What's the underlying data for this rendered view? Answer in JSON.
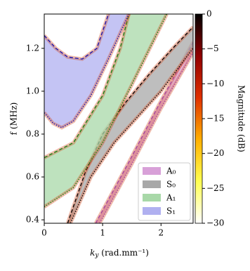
{
  "chart_data": {
    "type": "band",
    "xlabel": [
      "k",
      "y",
      " (rad.mm⁻¹)"
    ],
    "ylabel": "f (MHz)",
    "xlim": [
      0,
      2.55
    ],
    "ylim": [
      0.384,
      1.36
    ],
    "xticks": [
      0,
      1,
      2
    ],
    "yticks": [
      {
        "value": 0.4,
        "label": "0.4"
      },
      {
        "value": 0.6,
        "label": "0.6"
      },
      {
        "value": 0.8,
        "label": "0.8"
      },
      {
        "value": 1,
        "label": "1.0"
      },
      {
        "value": 1.2,
        "label": "1.2"
      }
    ],
    "legend": "lower right",
    "series": [
      {
        "name": "A₀",
        "color": "#d8a0d8",
        "edge": "#a040a0",
        "lower": {
          "x": [
            0.95,
            1.5,
            2.0,
            2.55
          ],
          "y": [
            0.384,
            0.66,
            0.92,
            1.18
          ]
        },
        "upper": {
          "x": [
            0.88,
            1.45,
            1.95,
            2.55
          ],
          "y": [
            0.384,
            0.67,
            0.93,
            1.23
          ]
        }
      },
      {
        "name": "S₀",
        "color": "#a8a8a8",
        "edge": "#000000",
        "lower": {
          "x": [
            0.45,
            0.8,
            1.2,
            1.6,
            2.0,
            2.55
          ],
          "y": [
            0.384,
            0.6,
            0.76,
            0.88,
            1.0,
            1.2
          ]
        },
        "upper": {
          "x": [
            0.4,
            0.7,
            1.0,
            1.4,
            1.8,
            2.2,
            2.55
          ],
          "y": [
            0.384,
            0.62,
            0.8,
            0.95,
            1.08,
            1.2,
            1.3
          ]
        }
      },
      {
        "name": "A₁",
        "color": "#a8d8a8",
        "edge": "#108010",
        "lower": {
          "x": [
            0,
            0.5,
            1.0,
            1.5,
            2.1
          ],
          "y": [
            0.46,
            0.55,
            0.76,
            1.03,
            1.36
          ]
        },
        "upper": {
          "x": [
            0,
            0.5,
            1.0,
            1.3,
            1.45
          ],
          "y": [
            0.69,
            0.76,
            0.98,
            1.2,
            1.36
          ]
        }
      },
      {
        "name": "S₁",
        "color": "#b0b0f0",
        "edge": "#1010b0",
        "lower": {
          "x": [
            0,
            0.15,
            0.3,
            0.5,
            0.8,
            1.1,
            1.45
          ],
          "y": [
            0.9,
            0.85,
            0.83,
            0.86,
            0.98,
            1.15,
            1.36
          ]
        },
        "upper": {
          "x": [
            0,
            0.2,
            0.4,
            0.65,
            0.9,
            1.1
          ],
          "y": [
            1.26,
            1.2,
            1.16,
            1.15,
            1.2,
            1.36
          ]
        }
      }
    ],
    "colorbar": {
      "label": "Magnitude (dB)",
      "lim": [
        -30,
        0
      ],
      "ticks": [
        0,
        {
          "value": -5,
          "label": "−5"
        },
        {
          "value": -10,
          "label": "−10"
        },
        {
          "value": -15,
          "label": "−15"
        },
        {
          "value": -20,
          "label": "−20"
        },
        {
          "value": -25,
          "label": "−25"
        },
        {
          "value": -30,
          "label": "−30"
        }
      ],
      "colors": [
        "#ffffff",
        "#ffff50",
        "#ffb000",
        "#e03000",
        "#900000",
        "#000000"
      ]
    }
  }
}
